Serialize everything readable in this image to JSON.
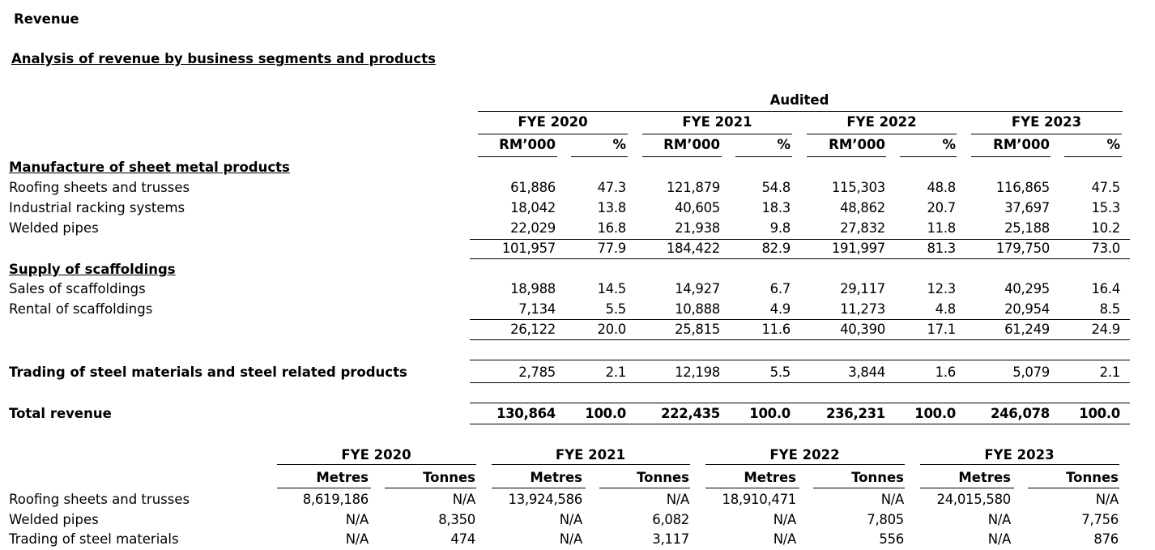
{
  "title": "Revenue",
  "subtitle": "Analysis of revenue by business segments and products",
  "revenue_table": {
    "audited_label": "Audited",
    "years": [
      "FYE 2020",
      "FYE 2021",
      "FYE 2022",
      "FYE 2023"
    ],
    "col_amount": "RM’000",
    "col_pct": "%",
    "sections": [
      {
        "heading": "Manufacture of sheet metal products",
        "rows": [
          {
            "label": "Roofing sheets and trusses",
            "values": [
              [
                "61,886",
                "47.3"
              ],
              [
                "121,879",
                "54.8"
              ],
              [
                "115,303",
                "48.8"
              ],
              [
                "116,865",
                "47.5"
              ]
            ]
          },
          {
            "label": "Industrial racking systems",
            "values": [
              [
                "18,042",
                "13.8"
              ],
              [
                "40,605",
                "18.3"
              ],
              [
                "48,862",
                "20.7"
              ],
              [
                "37,697",
                "15.3"
              ]
            ]
          },
          {
            "label": "Welded pipes",
            "values": [
              [
                "22,029",
                "16.8"
              ],
              [
                "21,938",
                "9.8"
              ],
              [
                "27,832",
                "11.8"
              ],
              [
                "25,188",
                "10.2"
              ]
            ]
          }
        ],
        "subtotal": [
          [
            "101,957",
            "77.9"
          ],
          [
            "184,422",
            "82.9"
          ],
          [
            "191,997",
            "81.3"
          ],
          [
            "179,750",
            "73.0"
          ]
        ]
      },
      {
        "heading": "Supply of scaffoldings",
        "rows": [
          {
            "label": "Sales of scaffoldings",
            "values": [
              [
                "18,988",
                "14.5"
              ],
              [
                "14,927",
                "6.7"
              ],
              [
                "29,117",
                "12.3"
              ],
              [
                "40,295",
                "16.4"
              ]
            ]
          },
          {
            "label": "Rental of scaffoldings",
            "values": [
              [
                "7,134",
                "5.5"
              ],
              [
                "10,888",
                "4.9"
              ],
              [
                "11,273",
                "4.8"
              ],
              [
                "20,954",
                "8.5"
              ]
            ]
          }
        ],
        "subtotal": [
          [
            "26,122",
            "20.0"
          ],
          [
            "25,815",
            "11.6"
          ],
          [
            "40,390",
            "17.1"
          ],
          [
            "61,249",
            "24.9"
          ]
        ]
      }
    ],
    "trading": {
      "label": "Trading of steel materials and steel related products",
      "values": [
        [
          "2,785",
          "2.1"
        ],
        [
          "12,198",
          "5.5"
        ],
        [
          "3,844",
          "1.6"
        ],
        [
          "5,079",
          "2.1"
        ]
      ]
    },
    "total": {
      "label": "Total revenue",
      "values": [
        [
          "130,864",
          "100.0"
        ],
        [
          "222,435",
          "100.0"
        ],
        [
          "236,231",
          "100.0"
        ],
        [
          "246,078",
          "100.0"
        ]
      ]
    }
  },
  "volume_table": {
    "years": [
      "FYE 2020",
      "FYE 2021",
      "FYE 2022",
      "FYE 2023"
    ],
    "col_metres": "Metres",
    "col_tonnes": "Tonnes",
    "rows": [
      {
        "label": "Roofing sheets and trusses",
        "values": [
          [
            "8,619,186",
            "N/A"
          ],
          [
            "13,924,586",
            "N/A"
          ],
          [
            "18,910,471",
            "N/A"
          ],
          [
            "24,015,580",
            "N/A"
          ]
        ]
      },
      {
        "label": "Welded pipes",
        "values": [
          [
            "N/A",
            "8,350"
          ],
          [
            "N/A",
            "6,082"
          ],
          [
            "N/A",
            "7,805"
          ],
          [
            "N/A",
            "7,756"
          ]
        ]
      },
      {
        "label": "Trading of steel materials",
        "values": [
          [
            "N/A",
            "474"
          ],
          [
            "N/A",
            "3,117"
          ],
          [
            "N/A",
            "556"
          ],
          [
            "N/A",
            "876"
          ]
        ]
      }
    ]
  }
}
